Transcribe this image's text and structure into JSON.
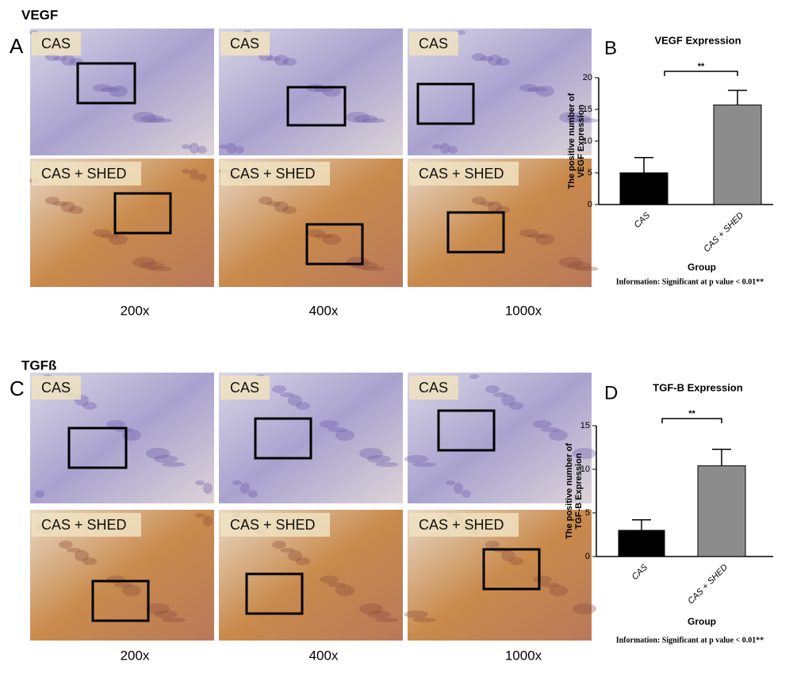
{
  "figure": {
    "sections": [
      {
        "heading": "VEGF",
        "letter": "A",
        "images": [
          [
            "CAS",
            "CAS",
            "CAS"
          ],
          [
            "CAS + SHED",
            "CAS + SHED",
            "CAS + SHED"
          ]
        ],
        "magnifications": [
          "200x",
          "400x",
          "1000x"
        ]
      },
      {
        "heading": "TGFß",
        "letter": "C",
        "images": [
          [
            "CAS",
            "CAS",
            "CAS"
          ],
          [
            "CAS + SHED",
            "CAS + SHED",
            "CAS + SHED"
          ]
        ],
        "magnifications": [
          "200x",
          "400x",
          "1000x"
        ]
      }
    ]
  },
  "chart_data": [
    {
      "type": "bar",
      "letter": "B",
      "title": "VEGF Expression",
      "ylabel": [
        "The positive number of",
        "VEGF Expression"
      ],
      "xlabel": "Group",
      "categories": [
        "CAS",
        "CAS + SHED"
      ],
      "series": [
        {
          "values": [
            5.0,
            15.7
          ],
          "errors": [
            2.4,
            2.3
          ],
          "colors": [
            "#000000",
            "#8c8c8c"
          ]
        }
      ],
      "ylim": [
        0,
        20
      ],
      "yticks": [
        0,
        5,
        10,
        15,
        20
      ],
      "annotation": "**",
      "note": "Information: Significant at p value < 0.01**"
    },
    {
      "type": "bar",
      "letter": "D",
      "title": "TGF-B Expression",
      "ylabel": [
        "The positive number of",
        "TGF-B Expression"
      ],
      "xlabel": "Group",
      "categories": [
        "CAS",
        "CAS + SHED"
      ],
      "series": [
        {
          "values": [
            3.0,
            10.4
          ],
          "errors": [
            1.2,
            1.9
          ],
          "colors": [
            "#000000",
            "#8c8c8c"
          ]
        }
      ],
      "ylim": [
        0,
        15
      ],
      "yticks": [
        0,
        5,
        10,
        15
      ],
      "annotation": "**",
      "note": "Information: Significant at p value < 0.01**"
    }
  ]
}
